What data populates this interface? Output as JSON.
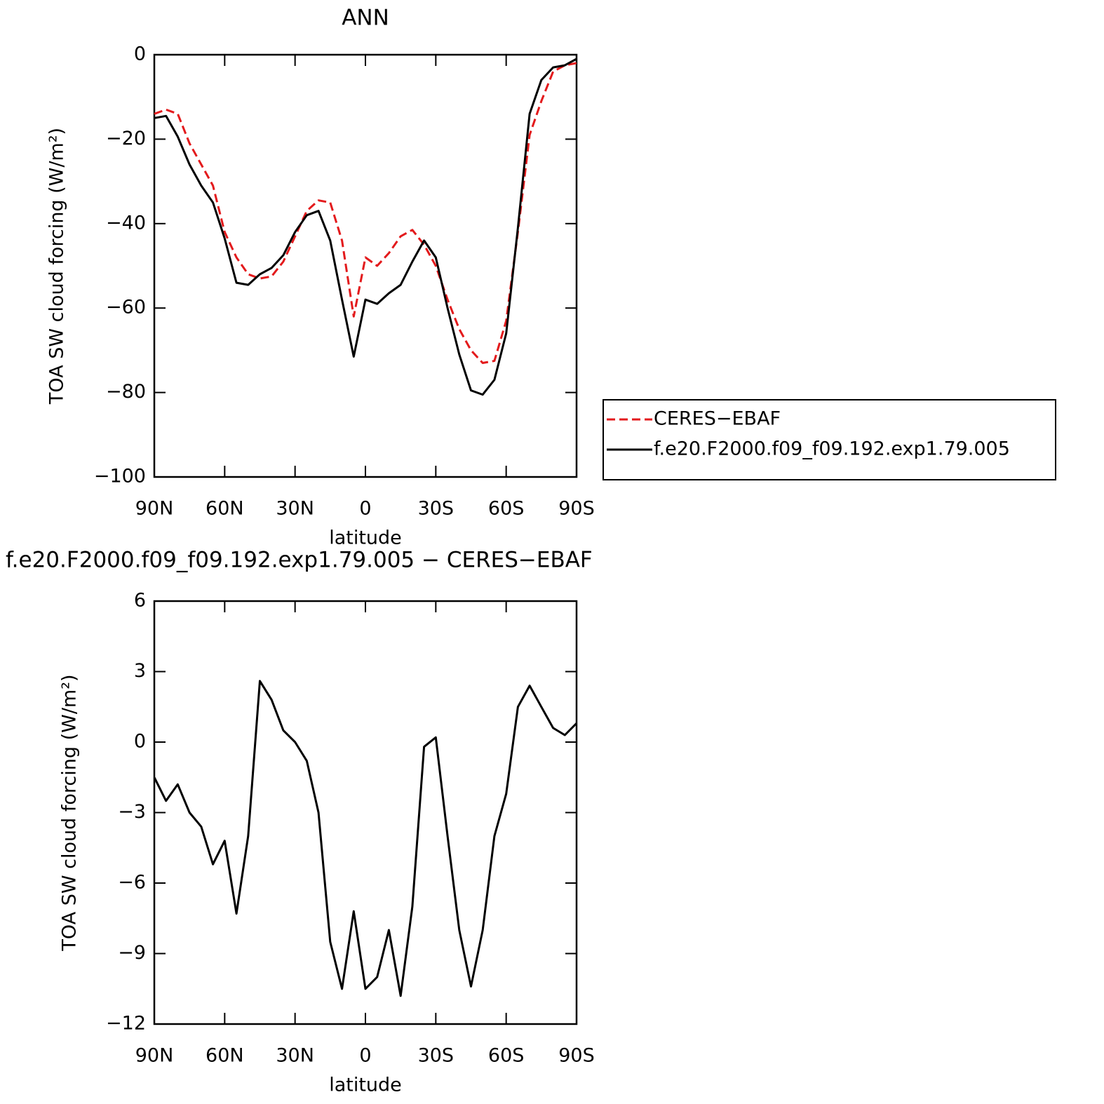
{
  "chart_data": [
    {
      "type": "line",
      "title": "ANN",
      "x_label": "latitude",
      "y_label": "TOA SW cloud forcing (W/m²)",
      "x": [
        90,
        85,
        80,
        75,
        70,
        65,
        60,
        55,
        50,
        45,
        40,
        35,
        30,
        25,
        20,
        15,
        10,
        5,
        0,
        -5,
        -10,
        -15,
        -20,
        -25,
        -30,
        -35,
        -40,
        -45,
        -50,
        -55,
        -60,
        -65,
        -70,
        -75,
        -80,
        -85,
        -90
      ],
      "series": [
        {
          "name": "CERES−EBAF",
          "color": "#e31a1c",
          "dash": true,
          "values": [
            -14,
            -13,
            -14,
            -21,
            -26,
            -31,
            -42,
            -48,
            -52,
            -53,
            -52.5,
            -49,
            -43,
            -37,
            -34.5,
            -35,
            -44,
            -62,
            -48,
            -50,
            -47,
            -43,
            -41.5,
            -45,
            -50,
            -58,
            -65,
            -70,
            -73,
            -72.5,
            -63,
            -42,
            -19,
            -11,
            -4,
            -2.5,
            -2
          ]
        },
        {
          "name": "f.e20.F2000.f09_f09.192.exp1.79.005",
          "color": "#000000",
          "dash": false,
          "values": [
            -15,
            -14.5,
            -19.4,
            -26,
            -31,
            -35,
            -43.5,
            -54,
            -54.5,
            -52,
            -50.5,
            -47.5,
            -42,
            -38,
            -37,
            -44,
            -58,
            -71.5,
            -58,
            -59,
            -56.5,
            -54.5,
            -49,
            -44,
            -48,
            -60,
            -71,
            -79.5,
            -80.5,
            -77,
            -66,
            -41,
            -14,
            -6,
            -3,
            -2.5,
            -1
          ]
        }
      ],
      "xlim": [
        90,
        -90
      ],
      "xticks": [
        {
          "value": 90,
          "label": "90N"
        },
        {
          "value": 60,
          "label": "60N"
        },
        {
          "value": 30,
          "label": "30N"
        },
        0,
        {
          "value": -30,
          "label": "30S"
        },
        {
          "value": -60,
          "label": "60S"
        },
        {
          "value": -90,
          "label": "90S"
        }
      ],
      "ylim": [
        -100,
        0
      ],
      "yticks": [
        {
          "value": -100,
          "label": "−100"
        },
        {
          "value": -80,
          "label": "−80"
        },
        {
          "value": -60,
          "label": "−60"
        },
        {
          "value": -40,
          "label": "−40"
        },
        {
          "value": -20,
          "label": "−20"
        },
        0
      ],
      "legend": "right"
    },
    {
      "type": "line",
      "title": "f.e20.F2000.f09_f09.192.exp1.79.005 − CERES−EBAF",
      "x_label": "latitude",
      "y_label": "TOA SW cloud forcing (W/m²)",
      "x": [
        90,
        85,
        80,
        75,
        70,
        65,
        60,
        55,
        50,
        45,
        40,
        35,
        30,
        25,
        20,
        15,
        10,
        5,
        0,
        -5,
        -10,
        -15,
        -20,
        -25,
        -30,
        -35,
        -40,
        -45,
        -50,
        -55,
        -60,
        -65,
        -70,
        -75,
        -80,
        -85,
        -90
      ],
      "series": [
        {
          "color": "#000000",
          "dash": false,
          "values": [
            -1.5,
            -2.5,
            -1.8,
            -3,
            -3.6,
            -5.2,
            -4.2,
            -7.3,
            -4,
            2.6,
            1.8,
            0.5,
            0,
            -0.8,
            -3,
            -8.5,
            -10.5,
            -7.2,
            -10.5,
            -10,
            -8,
            -10.8,
            -7,
            -0.2,
            0.2,
            -4,
            -8,
            -10.4,
            -8,
            -4,
            -2.2,
            1.5,
            2.4,
            1.5,
            0.6,
            0.3,
            0.8
          ]
        }
      ],
      "xlim": [
        90,
        -90
      ],
      "xticks": [
        {
          "value": 90,
          "label": "90N"
        },
        {
          "value": 60,
          "label": "60N"
        },
        {
          "value": 30,
          "label": "30N"
        },
        0,
        {
          "value": -30,
          "label": "30S"
        },
        {
          "value": -60,
          "label": "60S"
        },
        {
          "value": -90,
          "label": "90S"
        }
      ],
      "ylim": [
        -12,
        6
      ],
      "yticks": [
        {
          "value": -12,
          "label": "−12"
        },
        {
          "value": -9,
          "label": "−9"
        },
        {
          "value": -6,
          "label": "−6"
        },
        {
          "value": -3,
          "label": "−3"
        },
        0,
        3,
        6
      ]
    }
  ]
}
